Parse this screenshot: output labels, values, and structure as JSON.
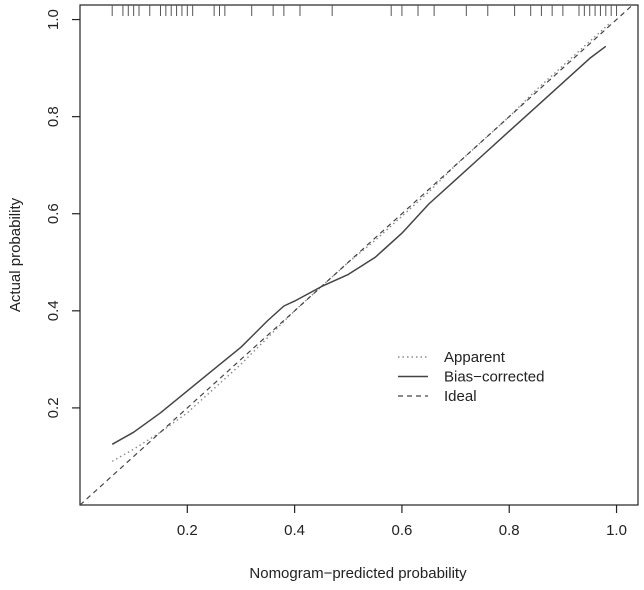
{
  "chart_data": {
    "type": "line",
    "title": "",
    "xlabel": "Nomogram−predicted probability",
    "ylabel": "Actual probability",
    "xlim": [
      0.0,
      1.04
    ],
    "ylim": [
      0.0,
      1.03
    ],
    "x_ticks": [
      0.2,
      0.4,
      0.6,
      0.8,
      1.0
    ],
    "x_tick_labels": [
      "0.2",
      "0.4",
      "0.6",
      "0.8",
      "1.0"
    ],
    "y_ticks": [
      0.2,
      0.4,
      0.6,
      0.8,
      1.0
    ],
    "y_tick_labels": [
      "0.2",
      "0.4",
      "0.6",
      "0.8",
      "1.0"
    ],
    "grid": false,
    "legend_position": "bottom-right",
    "legend": [
      "Apparent",
      "Bias−corrected",
      "Ideal"
    ],
    "series": [
      {
        "name": "Apparent",
        "style": "dotted",
        "x": [
          0.06,
          0.1,
          0.15,
          0.2,
          0.25,
          0.3,
          0.35,
          0.4,
          0.45,
          0.5,
          0.55,
          0.6,
          0.65,
          0.7,
          0.75,
          0.8,
          0.85,
          0.9,
          0.95,
          0.99
        ],
        "y": [
          0.09,
          0.115,
          0.15,
          0.19,
          0.24,
          0.29,
          0.345,
          0.4,
          0.45,
          0.5,
          0.545,
          0.595,
          0.645,
          0.7,
          0.75,
          0.8,
          0.855,
          0.905,
          0.955,
          0.995
        ]
      },
      {
        "name": "Bias−corrected",
        "style": "solid",
        "x": [
          0.06,
          0.1,
          0.15,
          0.2,
          0.25,
          0.3,
          0.35,
          0.38,
          0.4,
          0.45,
          0.5,
          0.55,
          0.6,
          0.65,
          0.7,
          0.75,
          0.8,
          0.85,
          0.9,
          0.95,
          0.98
        ],
        "y": [
          0.125,
          0.15,
          0.19,
          0.235,
          0.28,
          0.325,
          0.38,
          0.41,
          0.42,
          0.45,
          0.475,
          0.51,
          0.56,
          0.62,
          0.67,
          0.72,
          0.77,
          0.82,
          0.87,
          0.92,
          0.945
        ]
      },
      {
        "name": "Ideal",
        "style": "dashed",
        "x": [
          0.0,
          1.04
        ],
        "y": [
          0.0,
          1.04
        ]
      }
    ],
    "rug_x": [
      0.06,
      0.08,
      0.09,
      0.1,
      0.11,
      0.13,
      0.15,
      0.16,
      0.17,
      0.18,
      0.19,
      0.2,
      0.21,
      0.25,
      0.26,
      0.27,
      0.32,
      0.36,
      0.38,
      0.41,
      0.47,
      0.58,
      0.6,
      0.63,
      0.66,
      0.72,
      0.76,
      0.81,
      0.84,
      0.86,
      0.88,
      0.9,
      0.93,
      0.94,
      0.95,
      0.96,
      0.97,
      0.98,
      0.99,
      1.0
    ]
  }
}
